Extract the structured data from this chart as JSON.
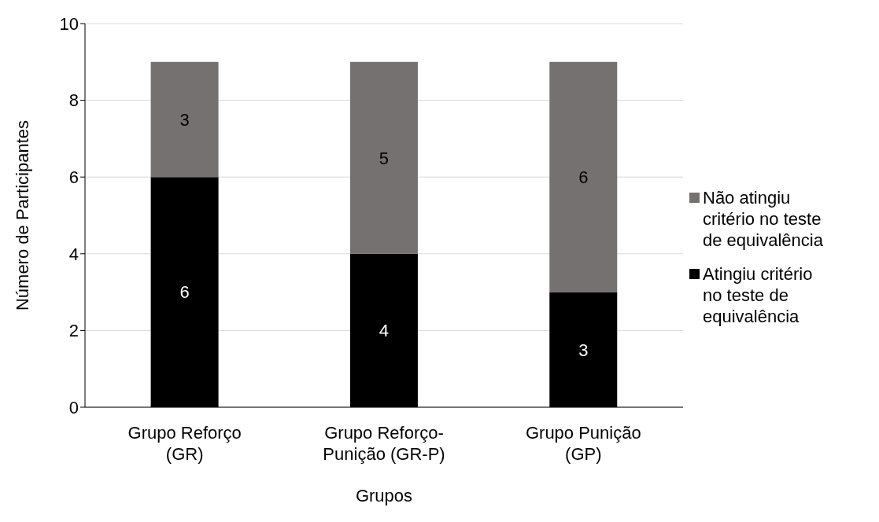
{
  "chart_data": {
    "type": "bar",
    "stacked": true,
    "xlabel": "Grupos",
    "ylabel": "Número de Participantes",
    "categories": [
      "Grupo Reforço (GR)",
      "Grupo Reforço-Punição (GR-P)",
      "Grupo Punição (GP)"
    ],
    "series": [
      {
        "name": "Atingiu critério no teste de equivalência",
        "color": "#000000",
        "values": [
          6,
          4,
          3
        ]
      },
      {
        "name": "Não atingiu critério no teste de equivalência",
        "color": "#767171",
        "values": [
          3,
          5,
          6
        ]
      }
    ],
    "ylim": [
      0,
      10
    ],
    "yticks": [
      0,
      2,
      4,
      6,
      8,
      10
    ],
    "grid": "y",
    "legend": "right",
    "data_labels": true
  }
}
